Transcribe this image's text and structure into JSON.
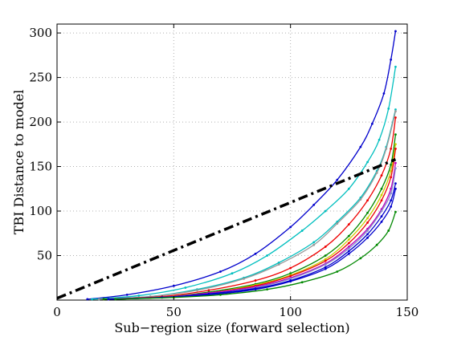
{
  "chart_data": {
    "type": "line",
    "title": "",
    "xlabel": "Sub−region size (forward selection)",
    "ylabel": "TBI Distance to model",
    "xlim": [
      0,
      150
    ],
    "ylim": [
      0,
      310
    ],
    "xticks": [
      0,
      50,
      100,
      150
    ],
    "yticks": [
      50,
      100,
      150,
      200,
      250,
      300
    ],
    "xtick_labels": [
      "0",
      "50",
      "100",
      "150"
    ],
    "ytick_labels": [
      "50",
      "100",
      "150",
      "200",
      "250",
      "300"
    ],
    "grid": true,
    "legend": "none",
    "series": [
      {
        "color": "#0000cc",
        "style": "solid-dots",
        "x": [
          13,
          30,
          50,
          70,
          85,
          100,
          110,
          120,
          130,
          135,
          140,
          143,
          145
        ],
        "y": [
          1,
          6,
          16,
          32,
          52,
          82,
          107,
          135,
          172,
          198,
          232,
          270,
          302
        ]
      },
      {
        "color": "#00bfbf",
        "style": "solid-dots",
        "x": [
          15,
          35,
          55,
          75,
          90,
          105,
          115,
          125,
          133,
          138,
          142,
          145
        ],
        "y": [
          1,
          5,
          14,
          30,
          50,
          78,
          100,
          125,
          155,
          180,
          215,
          262
        ]
      },
      {
        "color": "#00bfbf",
        "style": "solid-dots",
        "x": [
          18,
          40,
          60,
          80,
          95,
          110,
          120,
          130,
          137,
          141,
          145
        ],
        "y": [
          1,
          4,
          12,
          25,
          42,
          65,
          88,
          115,
          145,
          172,
          214
        ]
      },
      {
        "color": "#999999",
        "style": "solid-dots",
        "x": [
          18,
          40,
          60,
          80,
          95,
          110,
          120,
          130,
          137,
          141,
          145
        ],
        "y": [
          1,
          4,
          11,
          24,
          40,
          62,
          86,
          113,
          143,
          170,
          212
        ]
      },
      {
        "color": "#ee0000",
        "style": "solid-dots",
        "x": [
          20,
          45,
          65,
          85,
          100,
          115,
          125,
          133,
          139,
          143,
          145
        ],
        "y": [
          1,
          4,
          11,
          22,
          36,
          60,
          85,
          112,
          140,
          170,
          205
        ]
      },
      {
        "color": "#008800",
        "style": "solid-dots",
        "x": [
          20,
          45,
          65,
          85,
          100,
          115,
          125,
          133,
          139,
          143,
          145
        ],
        "y": [
          1,
          3,
          9,
          18,
          30,
          50,
          72,
          98,
          125,
          152,
          186
        ]
      },
      {
        "color": "#cccc00",
        "style": "solid-dots",
        "x": [
          22,
          45,
          65,
          85,
          100,
          115,
          125,
          133,
          139,
          143,
          145
        ],
        "y": [
          1,
          3,
          8,
          17,
          28,
          46,
          68,
          92,
          118,
          145,
          175
        ]
      },
      {
        "color": "#ee0000",
        "style": "solid-dots",
        "x": [
          22,
          45,
          65,
          85,
          100,
          115,
          125,
          133,
          139,
          143,
          145
        ],
        "y": [
          1,
          3,
          8,
          16,
          27,
          44,
          64,
          87,
          112,
          138,
          170
        ]
      },
      {
        "color": "#bb00bb",
        "style": "solid-dots",
        "x": [
          22,
          45,
          65,
          85,
          100,
          115,
          125,
          133,
          139,
          143,
          145
        ],
        "y": [
          1,
          3,
          8,
          15,
          25,
          41,
          60,
          80,
          102,
          125,
          154
        ]
      },
      {
        "color": "#8888cc",
        "style": "solid-dots",
        "x": [
          22,
          45,
          65,
          85,
          100,
          115,
          125,
          133,
          139,
          143,
          145
        ],
        "y": [
          1,
          3,
          7,
          14,
          24,
          40,
          58,
          78,
          100,
          120,
          148
        ]
      },
      {
        "color": "#0000cc",
        "style": "solid-dots",
        "x": [
          22,
          45,
          65,
          85,
          100,
          115,
          125,
          133,
          139,
          143,
          145
        ],
        "y": [
          1,
          3,
          7,
          13,
          22,
          37,
          55,
          74,
          94,
          112,
          131
        ]
      },
      {
        "color": "#0000cc",
        "style": "solid-dots",
        "x": [
          22,
          45,
          65,
          85,
          100,
          115,
          125,
          133,
          139,
          143,
          145
        ],
        "y": [
          1,
          3,
          6,
          12,
          21,
          35,
          52,
          70,
          88,
          105,
          125
        ]
      },
      {
        "color": "#008800",
        "style": "solid-dots",
        "x": [
          25,
          50,
          70,
          90,
          105,
          120,
          130,
          137,
          142,
          145
        ],
        "y": [
          1,
          3,
          6,
          12,
          20,
          32,
          47,
          62,
          78,
          99
        ]
      },
      {
        "color": "#000000",
        "style": "dashdot-thick",
        "x": [
          0,
          145
        ],
        "y": [
          2,
          158
        ]
      }
    ]
  }
}
